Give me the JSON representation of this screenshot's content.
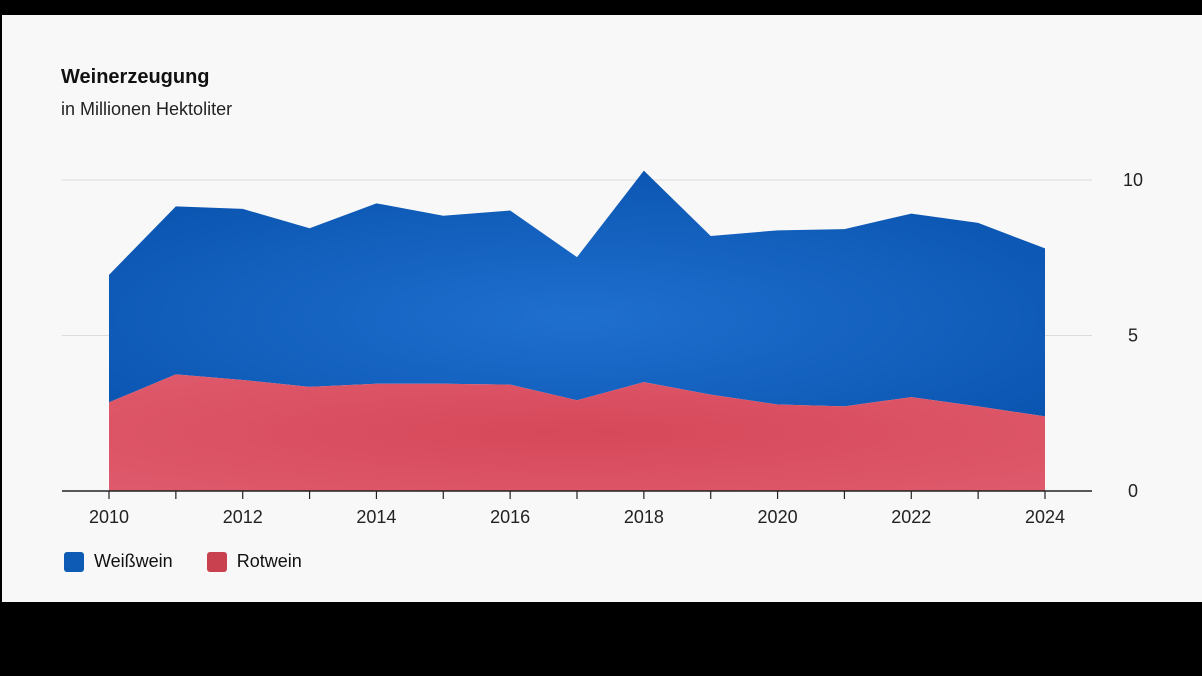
{
  "chart_data": {
    "type": "area",
    "stacked": true,
    "title": "Weinerzeugung",
    "subtitle": "in Millionen Hektoliter",
    "x": [
      2010,
      2011,
      2012,
      2013,
      2014,
      2015,
      2016,
      2017,
      2018,
      2019,
      2020,
      2021,
      2022,
      2023,
      2024
    ],
    "x_tick_labels": [
      "2010",
      "2012",
      "2014",
      "2016",
      "2018",
      "2020",
      "2022",
      "2024"
    ],
    "y_tick_labels": [
      "0",
      "5",
      "10"
    ],
    "ylim": [
      0,
      10
    ],
    "y_axis_position": "right",
    "grid": true,
    "legend_position": "bottom-left",
    "series": [
      {
        "name": "Weißwein",
        "color": "#0d5bb5",
        "values": [
          4.1,
          5.4,
          5.5,
          5.1,
          5.8,
          5.4,
          5.6,
          4.6,
          6.8,
          5.1,
          5.6,
          5.7,
          5.9,
          5.9,
          5.4
        ]
      },
      {
        "name": "Rotwein",
        "color": "#d9475c",
        "values": [
          2.85,
          3.75,
          3.57,
          3.35,
          3.45,
          3.45,
          3.42,
          2.92,
          3.5,
          3.1,
          2.78,
          2.72,
          3.02,
          2.72,
          2.4
        ]
      }
    ]
  }
}
